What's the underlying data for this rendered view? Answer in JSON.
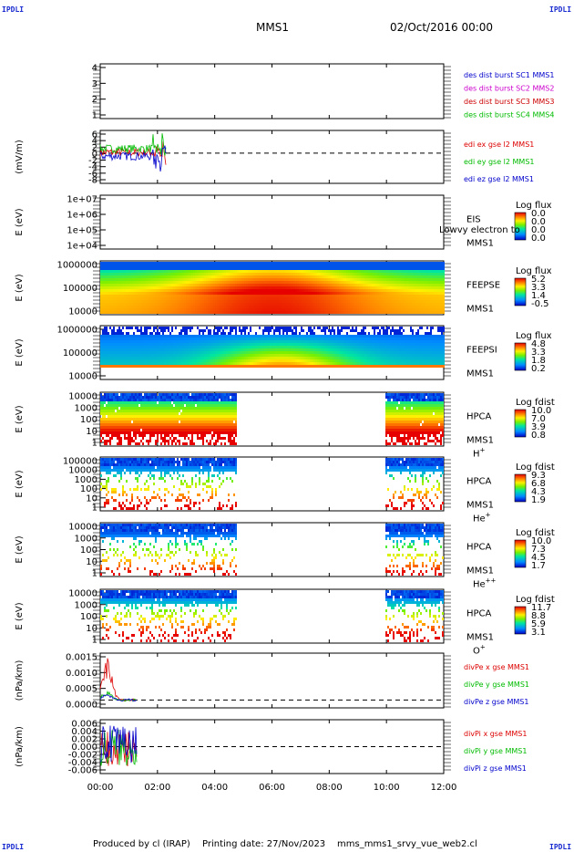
{
  "corner_labels": [
    "IPDLI",
    "IPDLI",
    "IPDLI",
    "IPDLI"
  ],
  "header": {
    "mission": "MMS1",
    "date_time": "02/Oct/2016 00:00"
  },
  "footer": {
    "produced_by": "Produced by cl (IRAP)",
    "printing_date": "Printing date: 27/Nov/2023",
    "script": "mms_mms1_srvy_vue_web2.cl"
  },
  "chart_data": [
    {
      "id": "des_dist",
      "type": "line",
      "ylabel": "",
      "yticks": [
        "4",
        "3",
        "2",
        "1"
      ],
      "ylim": [
        0.5,
        4.5
      ],
      "series": [
        {
          "name": "des dist burst SC1 MMS1",
          "color": "#0000cc",
          "values": []
        },
        {
          "name": "des dist burst SC2 MMS2",
          "color": "#cc00cc",
          "values": []
        },
        {
          "name": "des dist burst SC3 MMS3",
          "color": "#cc0000",
          "values": []
        },
        {
          "name": "des dist burst SC4 MMS4",
          "color": "#00bb00",
          "values": []
        }
      ]
    },
    {
      "id": "edi_e",
      "type": "line",
      "ylabel": "(mV/m)",
      "yticks": [
        "6",
        "4",
        "2",
        "0",
        "-2",
        "-4",
        "-6",
        "-8"
      ],
      "ylim": [
        -8,
        6
      ],
      "xrange_hours": [
        0,
        2.3
      ],
      "series": [
        {
          "name": "edi ex gse l2 MMS1",
          "color": "#dd0000",
          "level": 0.2
        },
        {
          "name": "edi ey gse l2 MMS1",
          "color": "#00bb00",
          "level": 1.2
        },
        {
          "name": "edi ez gse l2 MMS1",
          "color": "#0000cc",
          "level": -0.8
        }
      ]
    },
    {
      "id": "eis",
      "type": "heatmap",
      "ylabel": "E (eV)",
      "yticks": [
        "1e+07",
        "1e+06",
        "1e+05",
        "1e+04"
      ],
      "instrument": "EIS",
      "overlay_text": "Lowvy electron to",
      "spacecraft": "MMS1",
      "colorbar_title": "Log flux",
      "colorbar_ticks": [
        "0.0",
        "0.0",
        "0.0",
        "0.0"
      ]
    },
    {
      "id": "feeps_e",
      "type": "heatmap",
      "ylabel": "E (eV)",
      "yticks": [
        "1000000",
        "100000",
        "10000"
      ],
      "instrument": "FEEPSE",
      "spacecraft": "MMS1",
      "colorbar_title": "Log flux",
      "colorbar_ticks": [
        "5.2",
        "3.3",
        "1.4",
        "-0.5"
      ]
    },
    {
      "id": "feeps_i",
      "type": "heatmap",
      "ylabel": "E (eV)",
      "yticks": [
        "1000000",
        "100000",
        "10000"
      ],
      "instrument": "FEEPSI",
      "spacecraft": "MMS1",
      "colorbar_title": "Log flux",
      "colorbar_ticks": [
        "4.8",
        "3.3",
        "1.8",
        "0.2"
      ]
    },
    {
      "id": "hpca_h",
      "type": "heatmap",
      "ylabel": "E (eV)",
      "yticks": [
        "10000",
        "1000",
        "100",
        "10",
        "1"
      ],
      "instrument": "HPCA",
      "spacecraft": "MMS1",
      "species": "H",
      "species_charge": "+",
      "colorbar_title": "Log fdist",
      "colorbar_ticks": [
        "10.0",
        "7.0",
        "3.9",
        "0.8"
      ],
      "coverage_hours": [
        [
          0,
          4.75
        ],
        [
          9.95,
          12
        ]
      ]
    },
    {
      "id": "hpca_he1",
      "type": "heatmap",
      "ylabel": "E (eV)",
      "yticks": [
        "100000",
        "10000",
        "1000",
        "100",
        "10",
        "1"
      ],
      "instrument": "HPCA",
      "spacecraft": "MMS1",
      "species": "He",
      "species_charge": "+",
      "colorbar_title": "Log fdist",
      "colorbar_ticks": [
        "9.3",
        "6.8",
        "4.3",
        "1.9"
      ],
      "coverage_hours": [
        [
          0,
          4.75
        ],
        [
          9.95,
          12
        ]
      ]
    },
    {
      "id": "hpca_he2",
      "type": "heatmap",
      "ylabel": "E (eV)",
      "yticks": [
        "10000",
        "1000",
        "100",
        "10",
        "1"
      ],
      "instrument": "HPCA",
      "spacecraft": "MMS1",
      "species": "He",
      "species_charge": "++",
      "colorbar_title": "Log fdist",
      "colorbar_ticks": [
        "10.0",
        "7.3",
        "4.5",
        "1.7"
      ],
      "coverage_hours": [
        [
          0,
          4.75
        ],
        [
          9.95,
          12
        ]
      ]
    },
    {
      "id": "hpca_o",
      "type": "heatmap",
      "ylabel": "E (eV)",
      "yticks": [
        "10000",
        "1000",
        "100",
        "10",
        "1"
      ],
      "instrument": "HPCA",
      "spacecraft": "MMS1",
      "species": "O",
      "species_charge": "+",
      "colorbar_title": "Log fdist",
      "colorbar_ticks": [
        "11.7",
        "8.8",
        "5.9",
        "3.1"
      ],
      "coverage_hours": [
        [
          0,
          4.75
        ],
        [
          9.95,
          12
        ]
      ]
    },
    {
      "id": "divpe",
      "type": "line",
      "ylabel": "(nPa/km)",
      "yticks": [
        "0.0015",
        "0.0010",
        "0.0005",
        "0.0000"
      ],
      "ylim": [
        -0.0003,
        0.0018
      ],
      "xrange_hours": [
        0,
        1.3
      ],
      "series": [
        {
          "name": "divPe x gse MMS1",
          "color": "#dd0000",
          "peak": 0.0014
        },
        {
          "name": "divPe y gse MMS1",
          "color": "#00bb00",
          "peak": 0.0003
        },
        {
          "name": "divPe z gse MMS1",
          "color": "#0000cc",
          "peak": 0.0002
        }
      ]
    },
    {
      "id": "divpi",
      "type": "line",
      "ylabel": "(nPa/km)",
      "yticks": [
        "0.006",
        "0.004",
        "0.002",
        "0.000",
        "-0.002",
        "-0.004",
        "-0.006"
      ],
      "ylim": [
        -0.007,
        0.007
      ],
      "xrange_hours": [
        0,
        1.3
      ],
      "series": [
        {
          "name": "divPi x gse MMS1",
          "color": "#dd0000"
        },
        {
          "name": "divPi y gse MMS1",
          "color": "#00bb00"
        },
        {
          "name": "divPi z gse MMS1",
          "color": "#0000cc"
        }
      ]
    }
  ],
  "x_axis": {
    "ticks": [
      "00:00",
      "02:00",
      "04:00",
      "06:00",
      "08:00",
      "10:00",
      "12:00"
    ],
    "range_hours": [
      0,
      12
    ]
  }
}
